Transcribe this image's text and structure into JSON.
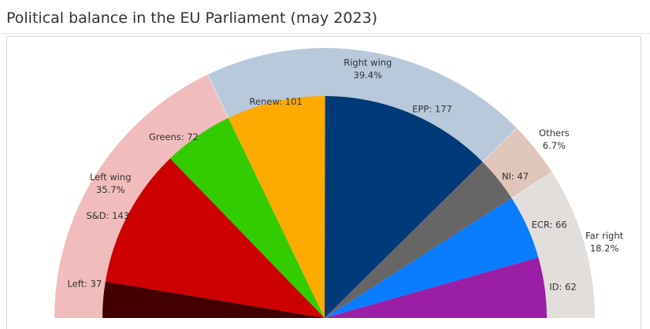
{
  "title": "Political balance in the EU Parliament (may 2023)",
  "colors": {
    "left_wing_ring": "#f1bcbc",
    "right_wing_ring": "#b8c9dc",
    "others_ring": "#e0c5bb",
    "far_right_ring": "#e2dedc",
    "left": "#420000",
    "s_and_d": "#cc0000",
    "greens": "#33cc00",
    "renew": "#ffaa00",
    "epp": "#003a78",
    "ni": "#666666",
    "ecr": "#0a7cff",
    "id": "#9b1ea6"
  },
  "chart_data": {
    "type": "pie",
    "variant": "half-donut (parliament semicircle) with outer bloc ring",
    "title": "Political balance in the EU Parliament (may 2023)",
    "groups": [
      {
        "name": "Left",
        "seats": 37,
        "label": "Left: 37",
        "color_key": "left"
      },
      {
        "name": "S&D",
        "seats": 143,
        "label": "S&D: 143",
        "color_key": "s_and_d"
      },
      {
        "name": "Greens",
        "seats": 72,
        "label": "Greens: 72",
        "color_key": "greens"
      },
      {
        "name": "Renew",
        "seats": 101,
        "label": "Renew: 101",
        "color_key": "renew"
      },
      {
        "name": "EPP",
        "seats": 177,
        "label": "EPP: 177",
        "color_key": "epp"
      },
      {
        "name": "NI",
        "seats": 47,
        "label": "NI: 47",
        "color_key": "ni"
      },
      {
        "name": "ECR",
        "seats": 66,
        "label": "ECR: 66",
        "color_key": "ecr"
      },
      {
        "name": "ID",
        "seats": 62,
        "label": "ID: 62",
        "color_key": "id"
      }
    ],
    "blocs": [
      {
        "name": "Left wing",
        "percent": "35.7%",
        "members": [
          "Left",
          "S&D",
          "Greens"
        ],
        "color_key": "left_wing_ring"
      },
      {
        "name": "Right wing",
        "percent": "39.4%",
        "members": [
          "Renew",
          "EPP"
        ],
        "color_key": "right_wing_ring"
      },
      {
        "name": "Others",
        "percent": "6.7%",
        "members": [
          "NI"
        ],
        "color_key": "others_ring"
      },
      {
        "name": "Far right",
        "percent": "18.2%",
        "members": [
          "ECR",
          "ID"
        ],
        "color_key": "far_right_ring"
      }
    ]
  }
}
